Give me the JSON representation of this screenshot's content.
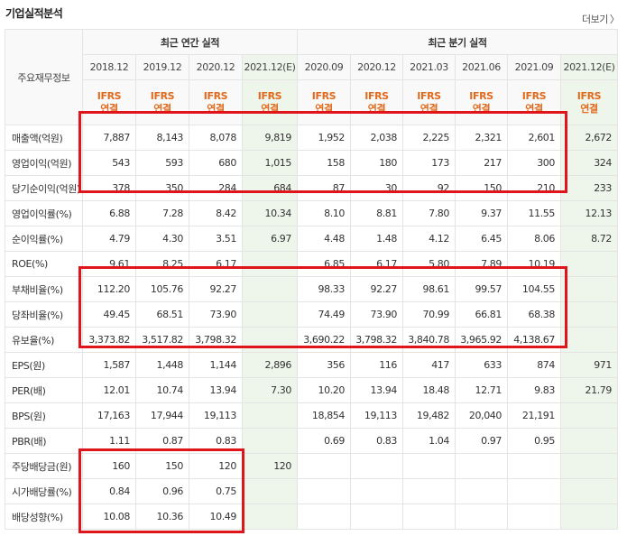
{
  "header": {
    "title": "기업실적분석",
    "more_label": "더보기",
    "more_icon": "chevron-right-icon"
  },
  "table": {
    "row_header_label": "주요재무정보",
    "group_annual": "최근 연간 실적",
    "group_quarter": "최근 분기 실적",
    "annual_periods": [
      "2018.12",
      "2019.12",
      "2020.12",
      "2021.12(E)"
    ],
    "quarter_periods": [
      "2020.09",
      "2020.12",
      "2021.03",
      "2021.06",
      "2021.09",
      "2021.12(E)"
    ],
    "standard_line1": "IFRS",
    "standard_line2": "연결",
    "rows": [
      {
        "label": "매출액(억원)",
        "annual": [
          "7,887",
          "8,143",
          "8,078",
          "9,819"
        ],
        "quarter": [
          "1,952",
          "2,038",
          "2,225",
          "2,321",
          "2,601",
          "2,672"
        ]
      },
      {
        "label": "영업이익(억원)",
        "annual": [
          "543",
          "593",
          "680",
          "1,015"
        ],
        "quarter": [
          "158",
          "180",
          "173",
          "217",
          "300",
          "324"
        ]
      },
      {
        "label": "당기순이익(억원)",
        "annual": [
          "378",
          "350",
          "284",
          "684"
        ],
        "quarter": [
          "87",
          "30",
          "92",
          "150",
          "210",
          "233"
        ]
      },
      {
        "label": "영업이익률(%)",
        "annual": [
          "6.88",
          "7.28",
          "8.42",
          "10.34"
        ],
        "quarter": [
          "8.10",
          "8.81",
          "7.80",
          "9.37",
          "11.55",
          "12.13"
        ]
      },
      {
        "label": "순이익률(%)",
        "annual": [
          "4.79",
          "4.30",
          "3.51",
          "6.97"
        ],
        "quarter": [
          "4.48",
          "1.48",
          "4.12",
          "6.45",
          "8.06",
          "8.72"
        ]
      },
      {
        "label": "ROE(%)",
        "annual": [
          "9.61",
          "8.25",
          "6.17",
          ""
        ],
        "quarter": [
          "6.85",
          "6.17",
          "5.80",
          "7.89",
          "10.19",
          ""
        ]
      },
      {
        "label": "부채비율(%)",
        "annual": [
          "112.20",
          "105.76",
          "92.27",
          ""
        ],
        "quarter": [
          "98.33",
          "92.27",
          "98.61",
          "99.57",
          "104.55",
          ""
        ]
      },
      {
        "label": "당좌비율(%)",
        "annual": [
          "49.45",
          "68.51",
          "73.90",
          ""
        ],
        "quarter": [
          "74.49",
          "73.90",
          "70.99",
          "66.81",
          "68.38",
          ""
        ]
      },
      {
        "label": "유보율(%)",
        "annual": [
          "3,373.82",
          "3,517.82",
          "3,798.32",
          ""
        ],
        "quarter": [
          "3,690.22",
          "3,798.32",
          "3,840.78",
          "3,965.92",
          "4,138.67",
          ""
        ]
      },
      {
        "label": "EPS(원)",
        "annual": [
          "1,587",
          "1,448",
          "1,144",
          "2,896"
        ],
        "quarter": [
          "356",
          "116",
          "417",
          "633",
          "874",
          "971"
        ]
      },
      {
        "label": "PER(배)",
        "annual": [
          "12.01",
          "10.74",
          "13.94",
          "7.30"
        ],
        "quarter": [
          "10.20",
          "13.94",
          "18.48",
          "12.71",
          "9.83",
          "21.79"
        ]
      },
      {
        "label": "BPS(원)",
        "annual": [
          "17,163",
          "17,944",
          "19,113",
          ""
        ],
        "quarter": [
          "18,854",
          "19,113",
          "19,482",
          "20,040",
          "21,191",
          ""
        ]
      },
      {
        "label": "PBR(배)",
        "annual": [
          "1.11",
          "0.87",
          "0.83",
          ""
        ],
        "quarter": [
          "0.69",
          "0.83",
          "1.04",
          "0.97",
          "0.95",
          ""
        ]
      },
      {
        "label": "주당배당금(원)",
        "annual": [
          "160",
          "150",
          "120",
          "120"
        ],
        "quarter": [
          "",
          "",
          "",
          "",
          "",
          ""
        ]
      },
      {
        "label": "시가배당률(%)",
        "annual": [
          "0.84",
          "0.96",
          "0.75",
          ""
        ],
        "quarter": [
          "",
          "",
          "",
          "",
          "",
          ""
        ]
      },
      {
        "label": "배당성향(%)",
        "annual": [
          "10.08",
          "10.36",
          "10.49",
          ""
        ],
        "quarter": [
          "",
          "",
          "",
          "",
          "",
          ""
        ]
      }
    ]
  },
  "colors": {
    "highlight_box": "#e0151c",
    "ifrs_text": "#e06a1d",
    "estimate_bg": "#eef5ea"
  }
}
